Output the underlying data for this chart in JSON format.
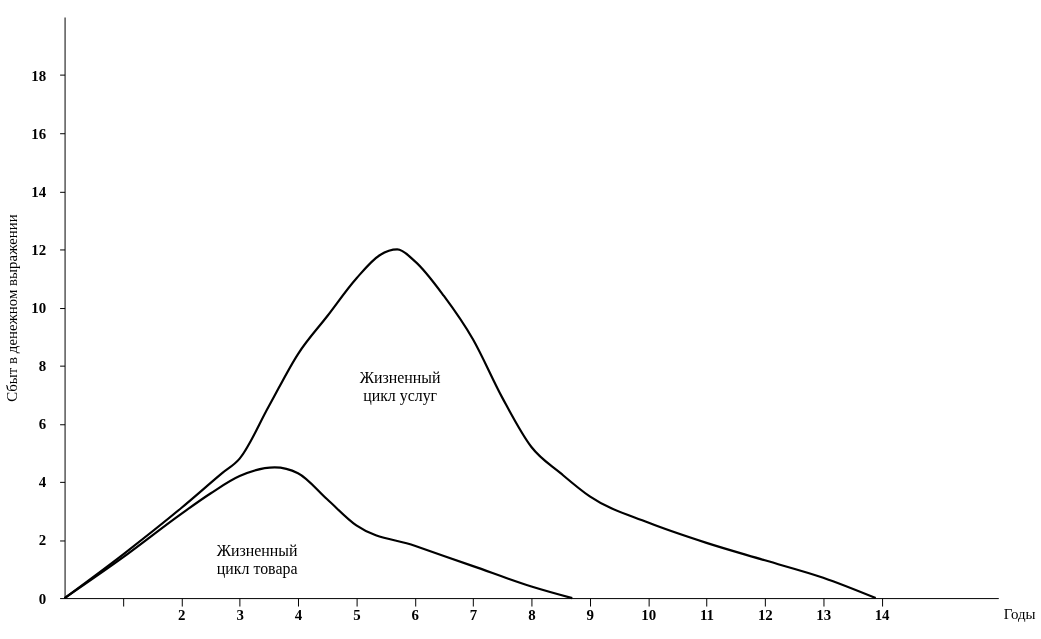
{
  "chart_data": {
    "type": "line",
    "xlabel": "Годы",
    "ylabel": "Сбыт в денежном выражении",
    "xlim": [
      0,
      16
    ],
    "ylim": [
      0,
      20
    ],
    "xticks": [
      {
        "value": 1,
        "label": null
      },
      2,
      3,
      4,
      5,
      6,
      7,
      8,
      9,
      10,
      11,
      12,
      13,
      14
    ],
    "yticks": [
      0,
      2,
      4,
      6,
      8,
      10,
      12,
      14,
      16,
      18
    ],
    "grid": false,
    "marker": "none",
    "line_style": "solid",
    "series": [
      {
        "name": "Жизненный\nцикл услуг",
        "color": "#000000",
        "x": [
          0,
          1,
          2,
          2.7,
          3,
          3.5,
          4,
          4.5,
          5,
          5.4,
          5.7,
          6,
          6.5,
          7,
          7.5,
          8,
          8.5,
          9,
          10,
          11,
          12,
          13,
          13.9
        ],
        "values": [
          0,
          1.5,
          3.1,
          4.3,
          4.8,
          6.6,
          8.4,
          9.7,
          11,
          11.8,
          12,
          11.6,
          10.4,
          8.9,
          6.9,
          5.2,
          4.3,
          3.5,
          2.6,
          1.9,
          1.3,
          0.7,
          0
        ]
      },
      {
        "name": "Жизненный\nцикл товара",
        "color": "#000000",
        "x": [
          0,
          1,
          2,
          2.5,
          3,
          3.6,
          4,
          4.5,
          5,
          6,
          7,
          8,
          8.7
        ],
        "values": [
          0,
          1.4,
          2.9,
          3.6,
          4.2,
          4.5,
          4.3,
          3.4,
          2.5,
          1.8,
          1.1,
          0.4,
          0
        ]
      }
    ]
  }
}
